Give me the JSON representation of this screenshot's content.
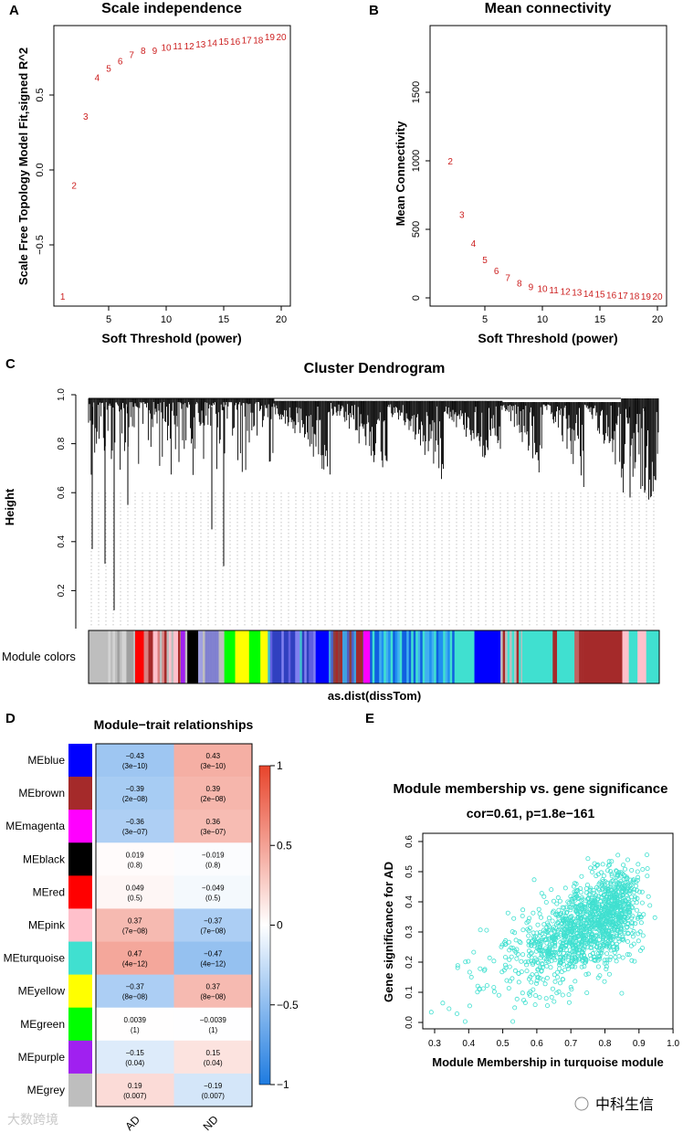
{
  "panels": {
    "A": "A",
    "B": "B",
    "C": "C",
    "D": "D",
    "E": "E"
  },
  "chart_data": [
    {
      "panel": "A",
      "type": "scatter",
      "title": "Scale independence",
      "xlabel": "Soft Threshold (power)",
      "ylabel": "Scale Free Topology Model Fit,signed R^2",
      "xticks": [
        5,
        10,
        15,
        20
      ],
      "xtick_labels": [
        "5",
        "10",
        "15",
        "20"
      ],
      "yticks": [
        -0.5,
        0.0,
        0.5
      ],
      "ytick_labels": [
        "−0.5",
        "0.0",
        "0.5"
      ],
      "xlim": [
        0.5,
        21
      ],
      "ylim": [
        -0.9,
        0.95
      ],
      "x": [
        1,
        2,
        3,
        4,
        5,
        6,
        7,
        8,
        9,
        10,
        11,
        12,
        13,
        14,
        15,
        16,
        17,
        18,
        19,
        20
      ],
      "y": [
        -0.84,
        -0.1,
        0.36,
        0.62,
        0.68,
        0.73,
        0.77,
        0.8,
        0.8,
        0.82,
        0.83,
        0.83,
        0.84,
        0.85,
        0.86,
        0.86,
        0.87,
        0.87,
        0.89,
        0.89
      ],
      "point_color": "#cc1f1f"
    },
    {
      "panel": "B",
      "type": "scatter",
      "title": "Mean connectivity",
      "xlabel": "Soft Threshold (power)",
      "ylabel": "Mean Connectivity",
      "xticks": [
        5,
        10,
        15,
        20
      ],
      "xtick_labels": [
        "5",
        "10",
        "15",
        "20"
      ],
      "yticks": [
        0,
        500,
        1000,
        1500
      ],
      "ytick_labels": [
        "0",
        "500",
        "1000",
        "1500"
      ],
      "xlim": [
        0.5,
        21
      ],
      "ylim": [
        -60,
        1990
      ],
      "x": [
        2,
        3,
        4,
        5,
        6,
        7,
        8,
        9,
        10,
        11,
        12,
        13,
        14,
        15,
        16,
        17,
        18,
        19,
        20
      ],
      "y": [
        1000,
        610,
        400,
        280,
        200,
        150,
        110,
        85,
        70,
        60,
        50,
        42,
        35,
        30,
        25,
        21,
        18,
        15,
        13
      ],
      "point_color": "#cc1f1f"
    },
    {
      "panel": "C",
      "type": "dendrogram",
      "title": "Cluster Dendrogram",
      "ylabel": "Height",
      "xlabel": "as.dist(dissTom)",
      "yticks": [
        0.2,
        0.4,
        0.6,
        0.8,
        1.0
      ],
      "ytick_labels": [
        "0.2",
        "0.4",
        "0.6",
        "0.8",
        "1.0"
      ],
      "ylim": [
        0.045,
        1.0
      ],
      "color_bar_label": "Module colors",
      "module_color_segments": [
        {
          "colors": [
            "#bebebe"
          ],
          "w": 45
        },
        {
          "colors": [
            "#bebebe",
            "#d3d3d3",
            "#a0a0a0"
          ],
          "w": 62
        },
        {
          "colors": [
            "#ff0000"
          ],
          "w": 20
        },
        {
          "colors": [
            "#bebebe",
            "#d98080",
            "#a52a2a",
            "#ffc0cb"
          ],
          "w": 85
        },
        {
          "colors": [
            "#a020f0"
          ],
          "w": 10
        },
        {
          "colors": [
            "#bebebe"
          ],
          "w": 5
        },
        {
          "colors": [
            "#000000"
          ],
          "w": 25
        },
        {
          "colors": [
            "#bebebe",
            "#8080d0",
            "#a0a0e0"
          ],
          "w": 60
        },
        {
          "colors": [
            "#00ff00"
          ],
          "w": 25
        },
        {
          "colors": [
            "#ffff00"
          ],
          "w": 32
        },
        {
          "colors": [
            "#00ff00"
          ],
          "w": 26
        },
        {
          "colors": [
            "#ffff00"
          ],
          "w": 17
        },
        {
          "colors": [
            "#6060e0",
            "#8080f0",
            "#3040c0",
            "#40c0d0"
          ],
          "w": 110
        },
        {
          "colors": [
            "#0000ff"
          ],
          "w": 30
        },
        {
          "colors": [
            "#8b4040",
            "#5060c0",
            "#a52a2a",
            "#40a0e0"
          ],
          "w": 80
        },
        {
          "colors": [
            "#ff00ff"
          ],
          "w": 15
        },
        {
          "colors": [
            "#2090f0",
            "#40b0f0",
            "#1060e0",
            "#40e0d0"
          ],
          "w": 200
        },
        {
          "colors": [
            "#40e0d0"
          ],
          "w": 40
        },
        {
          "colors": [
            "#0000ff"
          ],
          "w": 60
        },
        {
          "colors": [
            "#a52a2a",
            "#bebebe",
            "#40e0d0"
          ],
          "w": 50
        },
        {
          "colors": [
            "#40e0d0"
          ],
          "w": 70
        },
        {
          "colors": [
            "#a52a2a"
          ],
          "w": 10
        },
        {
          "colors": [
            "#40e0d0"
          ],
          "w": 40
        },
        {
          "colors": [
            "#a52a2a",
            "#c06060"
          ],
          "w": 20
        },
        {
          "colors": [
            "#a52a2a"
          ],
          "w": 90
        },
        {
          "colors": [
            "#ffc0cb"
          ],
          "w": 15
        },
        {
          "colors": [
            "#40e0d0"
          ],
          "w": 20
        },
        {
          "colors": [
            "#ffc0cb"
          ],
          "w": 20
        },
        {
          "colors": [
            "#40e0d0"
          ],
          "w": 30
        }
      ]
    },
    {
      "panel": "D",
      "type": "heatmap",
      "title": "Module−trait relationships",
      "rows": [
        "MEblue",
        "MEbrown",
        "MEmagenta",
        "MEblack",
        "MEred",
        "MEpink",
        "MEturquoise",
        "MEyellow",
        "MEgreen",
        "MEpurple",
        "MEgrey"
      ],
      "row_colors": [
        "#0000ff",
        "#a52a2a",
        "#ff00ff",
        "#000000",
        "#ff0000",
        "#ffc0cb",
        "#40e0d0",
        "#ffff00",
        "#00ff00",
        "#a020f0",
        "#bebebe"
      ],
      "columns": [
        "AD",
        "ND"
      ],
      "values": [
        [
          -0.43,
          0.43
        ],
        [
          -0.39,
          0.39
        ],
        [
          -0.36,
          0.36
        ],
        [
          0.019,
          -0.019
        ],
        [
          0.049,
          -0.049
        ],
        [
          0.37,
          -0.37
        ],
        [
          0.47,
          -0.47
        ],
        [
          -0.37,
          0.37
        ],
        [
          0.0039,
          -0.0039
        ],
        [
          -0.15,
          0.15
        ],
        [
          0.19,
          -0.19
        ]
      ],
      "value_labels": [
        [
          "−0.43",
          "0.43"
        ],
        [
          "−0.39",
          "0.39"
        ],
        [
          "−0.36",
          "0.36"
        ],
        [
          "0.019",
          "−0.019"
        ],
        [
          "0.049",
          "−0.049"
        ],
        [
          "0.37",
          "−0.37"
        ],
        [
          "0.47",
          "−0.47"
        ],
        [
          "−0.37",
          "0.37"
        ],
        [
          "0.0039",
          "−0.0039"
        ],
        [
          "−0.15",
          "0.15"
        ],
        [
          "0.19",
          "−0.19"
        ]
      ],
      "pvalue_labels": [
        [
          "(3e−10)",
          "(3e−10)"
        ],
        [
          "(2e−08)",
          "(2e−08)"
        ],
        [
          "(3e−07)",
          "(3e−07)"
        ],
        [
          "(0.8)",
          "(0.8)"
        ],
        [
          "(0.5)",
          "(0.5)"
        ],
        [
          "(7e−08)",
          "(7e−08)"
        ],
        [
          "(4e−12)",
          "(4e−12)"
        ],
        [
          "(8e−08)",
          "(8e−08)"
        ],
        [
          "(1)",
          "(1)"
        ],
        [
          "(0.04)",
          "(0.04)"
        ],
        [
          "(0.007)",
          "(0.007)"
        ]
      ],
      "colorbar_ticks": [
        1,
        0.5,
        0,
        -0.5,
        -1
      ],
      "colorbar_tick_labels": [
        "1",
        "0.5",
        "0",
        "−0.5",
        "−1"
      ],
      "colors": {
        "low": "#1e7be0",
        "mid": "#ffffff",
        "high": "#e8442b"
      }
    },
    {
      "panel": "E",
      "type": "scatter",
      "title": "Module membership vs. gene significance",
      "subtitle": "cor=0.61, p=1.8e−161",
      "xlabel": "Module Membership in turquoise module",
      "ylabel": "Gene significance for AD",
      "xticks": [
        0.3,
        0.4,
        0.5,
        0.6,
        0.7,
        0.8,
        0.9,
        1.0
      ],
      "xtick_labels": [
        "0.3",
        "0.4",
        "0.5",
        "0.6",
        "0.7",
        "0.8",
        "0.9",
        "1.0"
      ],
      "yticks": [
        0.0,
        0.1,
        0.2,
        0.3,
        0.4,
        0.5,
        0.6
      ],
      "ytick_labels": [
        "0.0",
        "0.1",
        "0.2",
        "0.3",
        "0.4",
        "0.5",
        "0.6"
      ],
      "xlim": [
        0.265,
        1.0
      ],
      "ylim": [
        -0.02,
        0.63
      ],
      "correlation": 0.61,
      "n_points": 1400,
      "point_color": "#40e0d0"
    }
  ],
  "watermarks": {
    "left": "大数跨境",
    "right": "中科生信"
  }
}
